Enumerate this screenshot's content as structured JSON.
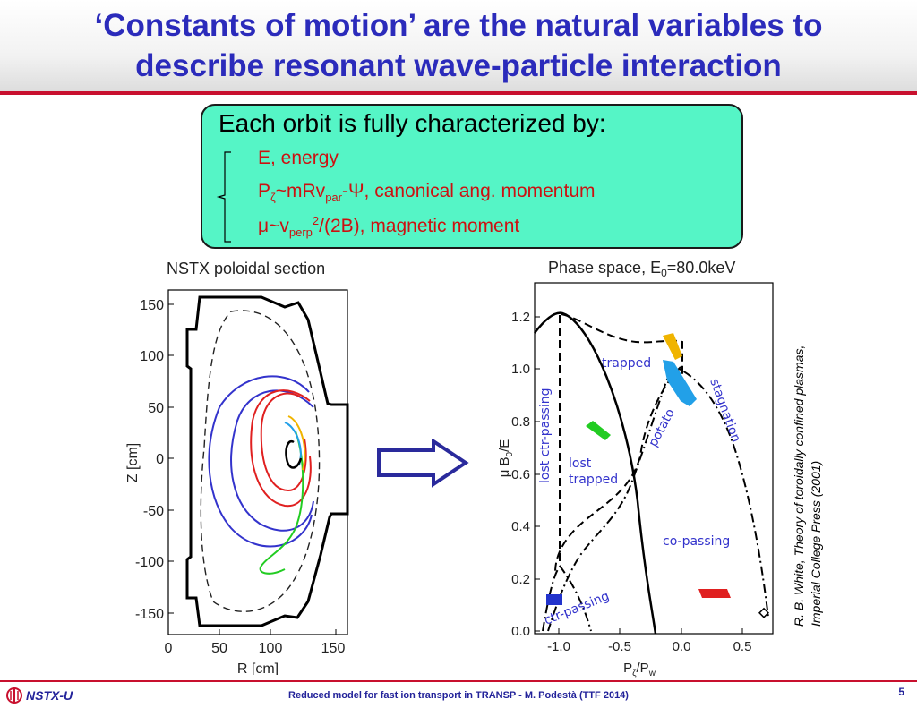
{
  "slide": {
    "title_line1": "‘Constants of motion’ are the natural variables to",
    "title_line2": "describe resonant wave-particle interaction",
    "box": {
      "heading": "Each orbit is fully characterized by:",
      "item1": "E, energy",
      "item2_a": "P",
      "item2_sub1": "ζ",
      "item2_b": "~mRv",
      "item2_sub2": "par",
      "item2_c": "-Ψ, canonical ang. momentum",
      "item3_a": "μ~v",
      "item3_sub": "perp",
      "item3_sup": "2",
      "item3_b": "/(2B), magnetic moment"
    },
    "citation_line1": "R. B. White, Theory of toroidally confined plasmas,",
    "citation_line2": "Imperial College Press (2001)",
    "footer_logo": "NSTX-U",
    "footer_text": "Reduced model for fast ion transport in TRANSP - M. Podestà (TTF 2014)",
    "page_number": "5"
  },
  "left_plot": {
    "title": "NSTX poloidal section",
    "xlabel": "R [cm]",
    "ylabel": "Z [cm]",
    "xticks": [
      "0",
      "50",
      "100",
      "150"
    ],
    "yticks": [
      "150",
      "100",
      "50",
      "0",
      "-50",
      "-100",
      "-150"
    ]
  },
  "right_plot": {
    "title_a": "Phase space, E",
    "title_sub": "0",
    "title_b": "=80.0keV",
    "xlabel_a": "P",
    "xlabel_sub1": "ζ",
    "xlabel_b": "/P",
    "xlabel_sub2": "w",
    "ylabel_a": "μ B",
    "ylabel_sub": "0",
    "ylabel_b": "/E",
    "xticks": [
      "-1.0",
      "-0.5",
      "0.0",
      "0.5"
    ],
    "yticks": [
      "0.0",
      "0.2",
      "0.4",
      "0.6",
      "0.8",
      "1.0",
      "1.2"
    ],
    "region_labels": {
      "trapped": "trapped",
      "potato": "potato",
      "stagnation": "stagnation",
      "lost_ctr": "lost ctr-passing",
      "lost_trapped_1": "lost",
      "lost_trapped_2": "trapped",
      "co_passing": "co-passing",
      "ctr_passing": "ctr-passing"
    }
  },
  "colors": {
    "title": "#2b2bbb",
    "accent_red": "#c8102e",
    "box_fill": "#55f5c6",
    "item_red": "#cc1111",
    "plot_blue": "#3333cc",
    "orbit_red": "#e02020",
    "orbit_green": "#22cc22",
    "orbit_yellow": "#f0b400",
    "orbit_cyan": "#22a0e8"
  }
}
